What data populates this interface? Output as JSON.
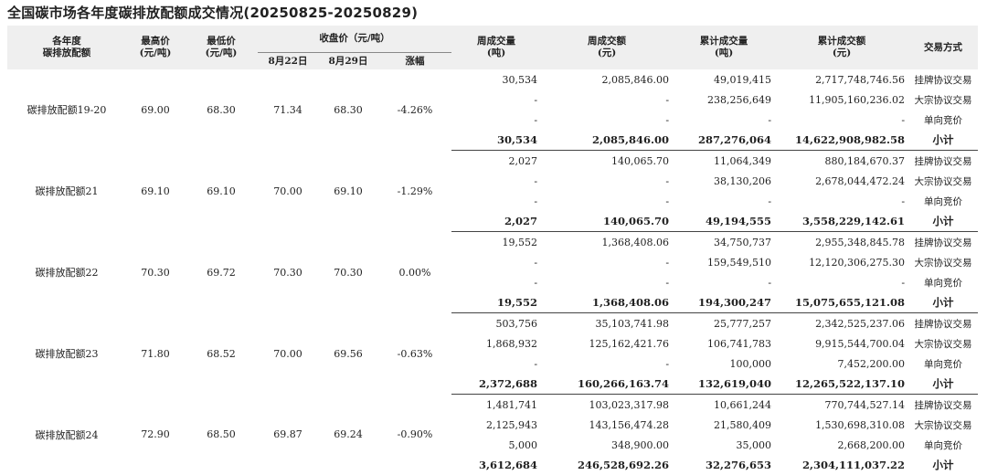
{
  "title": "全国碳市场各年度碳排放配额成交情况(20250825-20250829)",
  "headers": {
    "year": [
      "各年度",
      "碳排放配额"
    ],
    "high": [
      "最高价",
      "(元/吨)"
    ],
    "low": [
      "最低价",
      "(元/吨)"
    ],
    "close": "收盘价（元/吨）",
    "aug22": "8月22日",
    "aug29": "8月29日",
    "change": "涨幅",
    "weekly_volume": [
      "周成交量",
      "(吨)"
    ],
    "weekly_amount": [
      "周成交额",
      "(元)"
    ],
    "cum_volume": [
      "累计成交量",
      "(吨)"
    ],
    "cum_amount": [
      "累计成交额",
      "(元)"
    ],
    "method": "交易方式"
  },
  "groups": [
    {
      "label": "碳排放配额19-20",
      "high": "69.00",
      "low": "68.30",
      "aug22": "71.34",
      "aug29": "68.30",
      "change": "-4.26%",
      "rows": [
        {
          "wv": "30,534",
          "wa": "2,085,846.00",
          "cv": "49,019,415",
          "ca": "2,717,748,746.56",
          "m": "挂牌协议交易"
        },
        {
          "wv": "-",
          "wa": "-",
          "cv": "238,256,649",
          "ca": "11,905,160,236.02",
          "m": "大宗协议交易"
        },
        {
          "wv": "-",
          "wa": "-",
          "cv": "-",
          "ca": "-",
          "m": "单向竞价"
        },
        {
          "wv": "30,534",
          "wa": "2,085,846.00",
          "cv": "287,276,064",
          "ca": "14,622,908,982.58",
          "m": "小计"
        }
      ]
    },
    {
      "label": "碳排放配额21",
      "high": "69.10",
      "low": "69.10",
      "aug22": "70.00",
      "aug29": "69.10",
      "change": "-1.29%",
      "rows": [
        {
          "wv": "2,027",
          "wa": "140,065.70",
          "cv": "11,064,349",
          "ca": "880,184,670.37",
          "m": "挂牌协议交易"
        },
        {
          "wv": "-",
          "wa": "-",
          "cv": "38,130,206",
          "ca": "2,678,044,472.24",
          "m": "大宗协议交易"
        },
        {
          "wv": "-",
          "wa": "-",
          "cv": "-",
          "ca": "-",
          "m": "单向竞价"
        },
        {
          "wv": "2,027",
          "wa": "140,065.70",
          "cv": "49,194,555",
          "ca": "3,558,229,142.61",
          "m": "小计"
        }
      ]
    },
    {
      "label": "碳排放配额22",
      "high": "70.30",
      "low": "69.72",
      "aug22": "70.30",
      "aug29": "70.30",
      "change": "0.00%",
      "rows": [
        {
          "wv": "19,552",
          "wa": "1,368,408.06",
          "cv": "34,750,737",
          "ca": "2,955,348,845.78",
          "m": "挂牌协议交易"
        },
        {
          "wv": "-",
          "wa": "-",
          "cv": "159,549,510",
          "ca": "12,120,306,275.30",
          "m": "大宗协议交易"
        },
        {
          "wv": "-",
          "wa": "-",
          "cv": "-",
          "ca": "-",
          "m": "单向竞价"
        },
        {
          "wv": "19,552",
          "wa": "1,368,408.06",
          "cv": "194,300,247",
          "ca": "15,075,655,121.08",
          "m": "小计"
        }
      ]
    },
    {
      "label": "碳排放配额23",
      "high": "71.80",
      "low": "68.52",
      "aug22": "70.00",
      "aug29": "69.56",
      "change": "-0.63%",
      "rows": [
        {
          "wv": "503,756",
          "wa": "35,103,741.98",
          "cv": "25,777,257",
          "ca": "2,342,525,237.06",
          "m": "挂牌协议交易"
        },
        {
          "wv": "1,868,932",
          "wa": "125,162,421.76",
          "cv": "106,741,783",
          "ca": "9,915,544,700.04",
          "m": "大宗协议交易"
        },
        {
          "wv": "-",
          "wa": "-",
          "cv": "100,000",
          "ca": "7,452,200.00",
          "m": "单向竞价"
        },
        {
          "wv": "2,372,688",
          "wa": "160,266,163.74",
          "cv": "132,619,040",
          "ca": "12,265,522,137.10",
          "m": "小计"
        }
      ]
    },
    {
      "label": "碳排放配额24",
      "high": "72.90",
      "low": "68.50",
      "aug22": "69.87",
      "aug29": "69.24",
      "change": "-0.90%",
      "rows": [
        {
          "wv": "1,481,741",
          "wa": "103,023,317.98",
          "cv": "10,661,244",
          "ca": "770,744,527.14",
          "m": "挂牌协议交易"
        },
        {
          "wv": "2,125,943",
          "wa": "143,156,474.28",
          "cv": "21,580,409",
          "ca": "1,530,698,310.08",
          "m": "大宗协议交易"
        },
        {
          "wv": "5,000",
          "wa": "348,900.00",
          "cv": "35,000",
          "ca": "2,668,200.00",
          "m": "单向竞价"
        },
        {
          "wv": "3,612,684",
          "wa": "246,528,692.26",
          "cv": "32,276,653",
          "ca": "2,304,111,037.22",
          "m": "小计"
        }
      ]
    }
  ]
}
